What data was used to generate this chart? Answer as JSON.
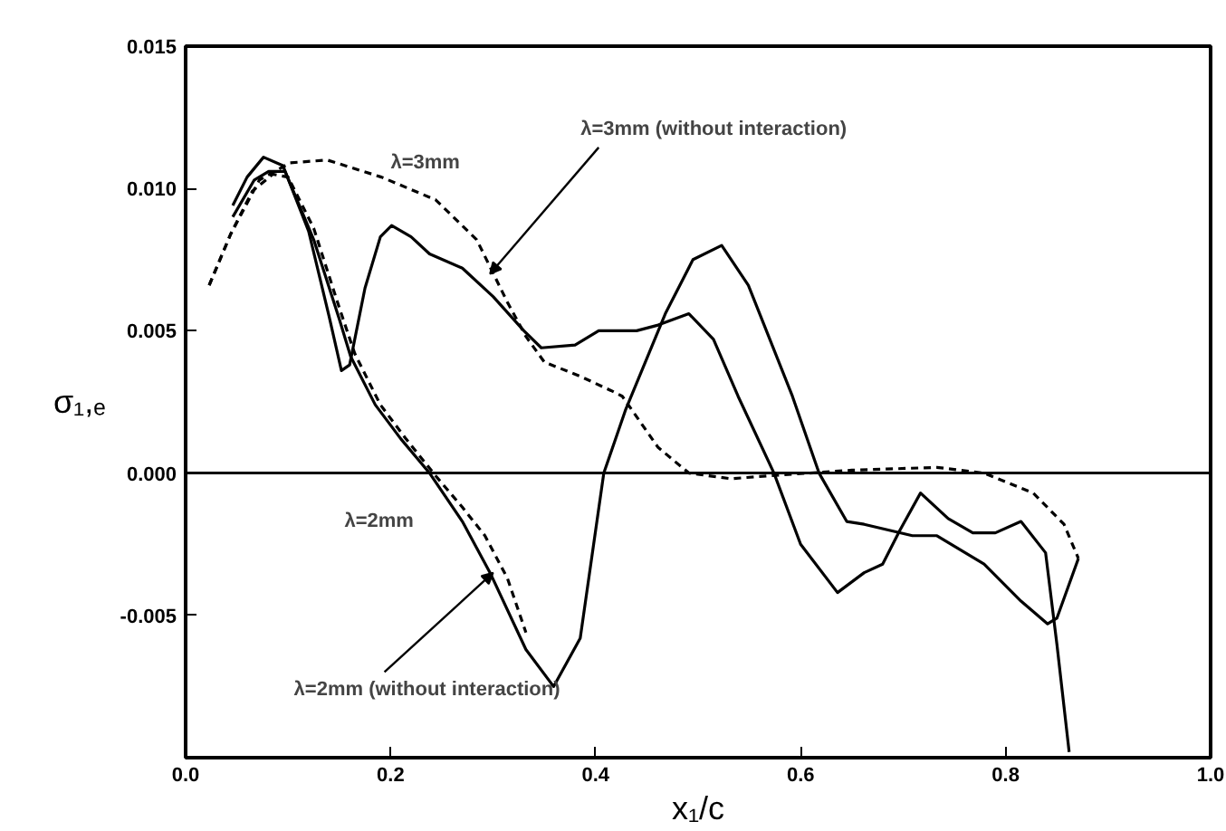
{
  "chart_data": {
    "type": "line",
    "xlabel": "x₁/c",
    "ylabel": "σ₁,ₑ",
    "xlim": [
      0,
      1.0
    ],
    "ylim": [
      -0.01,
      0.015
    ],
    "xticks": [
      {
        "value": 0,
        "label": "0.0"
      },
      {
        "value": 0.2,
        "label": "0.2"
      },
      {
        "value": 0.4,
        "label": "0.4"
      },
      {
        "value": 0.6,
        "label": "0.6"
      },
      {
        "value": 0.8,
        "label": "0.8"
      },
      {
        "value": 1.0,
        "label": "1.0"
      }
    ],
    "yticks": [
      {
        "value": -0.005,
        "label": "-0.005"
      },
      {
        "value": 0,
        "label": "0.000"
      },
      {
        "value": 0.005,
        "label": "0.005"
      },
      {
        "value": 0.01,
        "label": "0.010"
      },
      {
        "value": 0.015,
        "label": "0.015"
      }
    ],
    "grid": false,
    "ref_lines": [
      {
        "axis": "y",
        "value": 0,
        "color": "#000000"
      }
    ],
    "series": [
      {
        "color": "#000000",
        "line_style": "solid",
        "x": [
          0.046,
          0.06,
          0.076,
          0.095,
          0.12,
          0.14,
          0.152,
          0.16,
          0.175,
          0.19,
          0.201,
          0.22,
          0.238,
          0.27,
          0.3,
          0.33,
          0.347,
          0.38,
          0.403,
          0.44,
          0.461,
          0.491,
          0.515,
          0.539,
          0.574,
          0.6,
          0.636,
          0.662,
          0.68,
          0.697,
          0.717,
          0.744,
          0.768,
          0.79,
          0.815,
          0.839,
          0.85,
          0.862
        ],
        "values": [
          0.0094,
          0.0104,
          0.0111,
          0.0108,
          0.0085,
          0.0055,
          0.0036,
          0.0038,
          0.0065,
          0.0083,
          0.0087,
          0.0083,
          0.0077,
          0.0072,
          0.0062,
          0.005,
          0.0044,
          0.0045,
          0.005,
          0.005,
          0.0052,
          0.0056,
          0.0047,
          0.0027,
          0.0,
          -0.0025,
          -0.0042,
          -0.0035,
          -0.0032,
          -0.002,
          -0.0007,
          -0.0016,
          -0.0021,
          -0.0021,
          -0.0017,
          -0.0028,
          -0.006,
          -0.0098
        ]
      },
      {
        "color": "#000000",
        "line_style": "solid",
        "x": [
          0.046,
          0.067,
          0.081,
          0.097,
          0.125,
          0.15,
          0.161,
          0.185,
          0.21,
          0.238,
          0.27,
          0.297,
          0.332,
          0.359,
          0.385,
          0.408,
          0.429,
          0.468,
          0.495,
          0.523,
          0.549,
          0.592,
          0.618,
          0.645,
          0.662,
          0.709,
          0.733,
          0.779,
          0.815,
          0.841,
          0.85,
          0.871
        ],
        "values": [
          0.009,
          0.0103,
          0.0106,
          0.0106,
          0.0082,
          0.0054,
          0.0041,
          0.0024,
          0.0012,
          0.0,
          -0.0017,
          -0.0035,
          -0.0062,
          -0.0075,
          -0.0058,
          0.0,
          0.0022,
          0.0056,
          0.0075,
          0.008,
          0.0066,
          0.0027,
          0.0,
          -0.0017,
          -0.0018,
          -0.0022,
          -0.0022,
          -0.0032,
          -0.0045,
          -0.0053,
          -0.0051,
          -0.003
        ]
      },
      {
        "color": "#000000",
        "line_style": "dashed",
        "x": [
          0.023,
          0.044,
          0.072,
          0.102,
          0.138,
          0.191,
          0.244,
          0.284,
          0.314,
          0.332,
          0.35,
          0.385,
          0.415,
          0.426,
          0.461,
          0.491,
          0.532,
          0.567,
          0.65,
          0.733,
          0.779,
          0.827,
          0.857,
          0.871
        ],
        "values": [
          0.0066,
          0.0084,
          0.0103,
          0.0109,
          0.011,
          0.0104,
          0.0096,
          0.0082,
          0.006,
          0.0048,
          0.0039,
          0.0034,
          0.0029,
          0.0027,
          0.0009,
          0.0,
          -0.0002,
          -0.0001,
          0.0001,
          0.0002,
          0.0,
          -0.0007,
          -0.0018,
          -0.003
        ]
      },
      {
        "color": "#000000",
        "line_style": "dashed",
        "x": [
          0.023,
          0.044,
          0.065,
          0.085,
          0.1,
          0.125,
          0.15,
          0.165,
          0.19,
          0.215,
          0.244,
          0.27,
          0.292,
          0.314,
          0.332
        ],
        "values": [
          0.0066,
          0.0084,
          0.0099,
          0.0105,
          0.0104,
          0.0086,
          0.0058,
          0.0042,
          0.0024,
          0.0012,
          -0.0001,
          -0.0012,
          -0.0022,
          -0.0037,
          -0.0056
        ]
      }
    ],
    "annotations": [
      "λ=3mm",
      {
        "text": "λ=3mm (without interaction)",
        "x": 0.297,
        "y": 0.007
      },
      "λ=2mm",
      {
        "text": "λ=2mm (without interaction)",
        "x": 0.3,
        "y": -0.0035
      }
    ]
  }
}
